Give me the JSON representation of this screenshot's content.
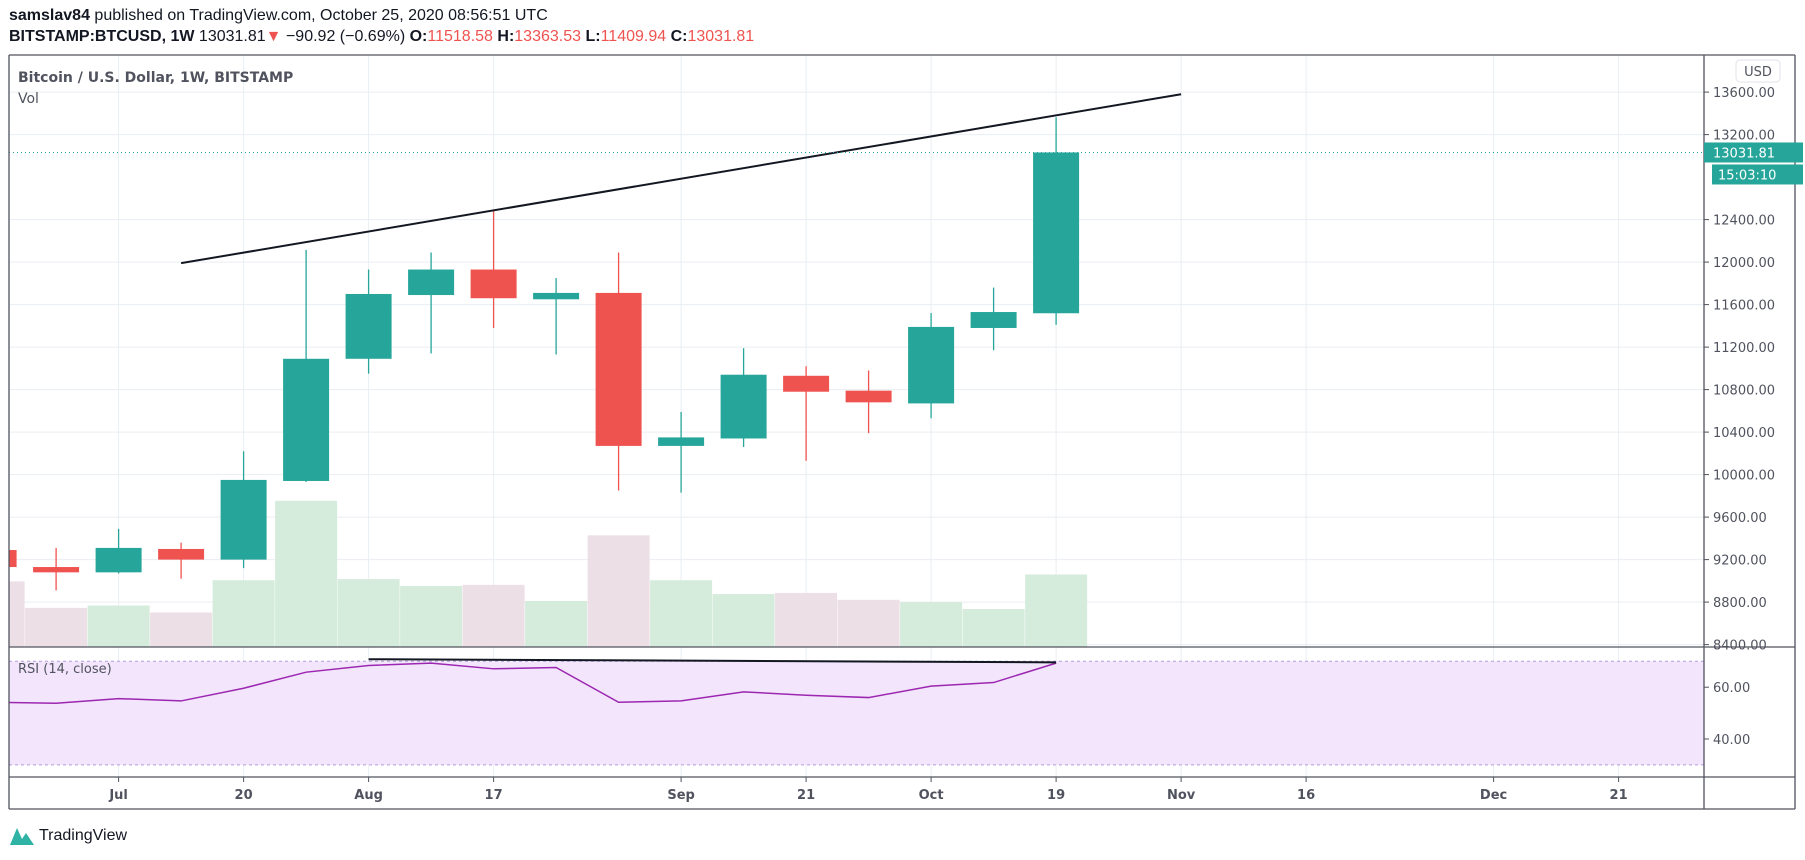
{
  "header": {
    "author": "samslav84",
    "published": "published on TradingView.com, October 25, 2020 08:56:51 UTC",
    "symbol": "BITSTAMP:BTCUSD, 1W",
    "last": "13031.81",
    "change": "−90.92 (−0.69%)",
    "o_label": "O:",
    "o": "11518.58",
    "h_label": "H:",
    "h": "13363.53",
    "l_label": "L:",
    "l": "11409.94",
    "c_label": "C:",
    "c": "13031.81"
  },
  "colors": {
    "up": "#26a69a",
    "down": "#ef5350",
    "rsi": "#9c27b0",
    "rsi_band": "#f3e5fc",
    "vol_up": "#d5ebdc",
    "vol_down": "#ecdfe5"
  },
  "chart_data": {
    "type": "candlestick",
    "title": "Bitcoin / U.S. Dollar, 1W, BITSTAMP",
    "volume_label": "Vol",
    "currency": "USD",
    "last_price_label": "13031.81",
    "countdown": "15:03:10",
    "ylim": [
      8400,
      13600
    ],
    "yticks": [
      "13600.00",
      "13200.00",
      "12400.00",
      "12000.00",
      "11600.00",
      "11200.00",
      "10800.00",
      "10400.00",
      "10000.00",
      "9600.00",
      "9200.00",
      "8800.00",
      "8400.00"
    ],
    "ytick_values": [
      13600,
      13200,
      12400,
      12000,
      11600,
      11200,
      10800,
      10400,
      10000,
      9600,
      9200,
      8800,
      8400
    ],
    "xticks": [
      {
        "label": "Jul",
        "week": 0
      },
      {
        "label": "20",
        "week": 2
      },
      {
        "label": "Aug",
        "week": 4
      },
      {
        "label": "17",
        "week": 6
      },
      {
        "label": "Sep",
        "week": 9
      },
      {
        "label": "21",
        "week": 11
      },
      {
        "label": "Oct",
        "week": 13
      },
      {
        "label": "19",
        "week": 15
      },
      {
        "label": "Nov",
        "week": 17
      },
      {
        "label": "16",
        "week": 19
      },
      {
        "label": "Dec",
        "week": 22
      },
      {
        "label": "21",
        "week": 24
      }
    ],
    "first_week": -2,
    "candles": [
      {
        "date": "2020-06-22",
        "o": 9290,
        "h": 9340,
        "l": 9100,
        "c": 9130,
        "vol": 57
      },
      {
        "date": "2020-06-29",
        "o": 9130,
        "h": 9310,
        "l": 8910,
        "c": 9080,
        "vol": 34
      },
      {
        "date": "2020-07-06",
        "o": 9080,
        "h": 9490,
        "l": 9070,
        "c": 9310,
        "vol": 36
      },
      {
        "date": "2020-07-13",
        "o": 9300,
        "h": 9360,
        "l": 9020,
        "c": 9200,
        "vol": 30
      },
      {
        "date": "2020-07-20",
        "o": 9200,
        "h": 10220,
        "l": 9120,
        "c": 9950,
        "vol": 58
      },
      {
        "date": "2020-07-27",
        "o": 9940,
        "h": 12115,
        "l": 9930,
        "c": 11090,
        "vol": 127
      },
      {
        "date": "2020-08-03",
        "o": 11090,
        "h": 11930,
        "l": 10950,
        "c": 11700,
        "vol": 59
      },
      {
        "date": "2020-08-10",
        "o": 11690,
        "h": 12090,
        "l": 11140,
        "c": 11930,
        "vol": 53
      },
      {
        "date": "2020-08-17",
        "o": 11930,
        "h": 12490,
        "l": 11380,
        "c": 11660,
        "vol": 54
      },
      {
        "date": "2020-08-24",
        "o": 11650,
        "h": 11850,
        "l": 11130,
        "c": 11710,
        "vol": 40
      },
      {
        "date": "2020-08-31",
        "o": 11710,
        "h": 12090,
        "l": 9850,
        "c": 10270,
        "vol": 97
      },
      {
        "date": "2020-09-07",
        "o": 10270,
        "h": 10590,
        "l": 9830,
        "c": 10350,
        "vol": 58
      },
      {
        "date": "2020-09-14",
        "o": 10340,
        "h": 11190,
        "l": 10260,
        "c": 10940,
        "vol": 46
      },
      {
        "date": "2020-09-21",
        "o": 10930,
        "h": 11020,
        "l": 10130,
        "c": 10780,
        "vol": 47
      },
      {
        "date": "2020-09-28",
        "o": 10790,
        "h": 10980,
        "l": 10390,
        "c": 10680,
        "vol": 41
      },
      {
        "date": "2020-10-05",
        "o": 10670,
        "h": 11520,
        "l": 10530,
        "c": 11390,
        "vol": 39
      },
      {
        "date": "2020-10-12",
        "o": 11380,
        "h": 11760,
        "l": 11170,
        "c": 11530,
        "vol": 33
      },
      {
        "date": "2020-10-19",
        "o": 11518.58,
        "h": 13363.53,
        "l": 11409.94,
        "c": 13031.81,
        "vol": 63
      }
    ],
    "trendline": {
      "from": {
        "week": 1,
        "price": 11990
      },
      "to": {
        "week": 17,
        "price": 13580
      }
    },
    "rsi": {
      "label": "RSI (14, close)",
      "yticks": [
        "60.00",
        "40.00"
      ],
      "ytick_values": [
        60,
        40
      ],
      "upper_band": 70,
      "lower_band": 30,
      "ylim": [
        25,
        75
      ],
      "values": [
        54.2,
        53.8,
        55.6,
        54.7,
        59.6,
        65.8,
        68.4,
        69.3,
        67.1,
        67.6,
        54.2,
        54.7,
        58.2,
        56.9,
        56.0,
        60.4,
        61.8,
        69.3
      ],
      "trendline": {
        "from": {
          "week": 4,
          "value": 70.8
        },
        "to": {
          "week": 15,
          "value": 69.6
        }
      }
    }
  },
  "footer": {
    "brand": "TradingView"
  }
}
